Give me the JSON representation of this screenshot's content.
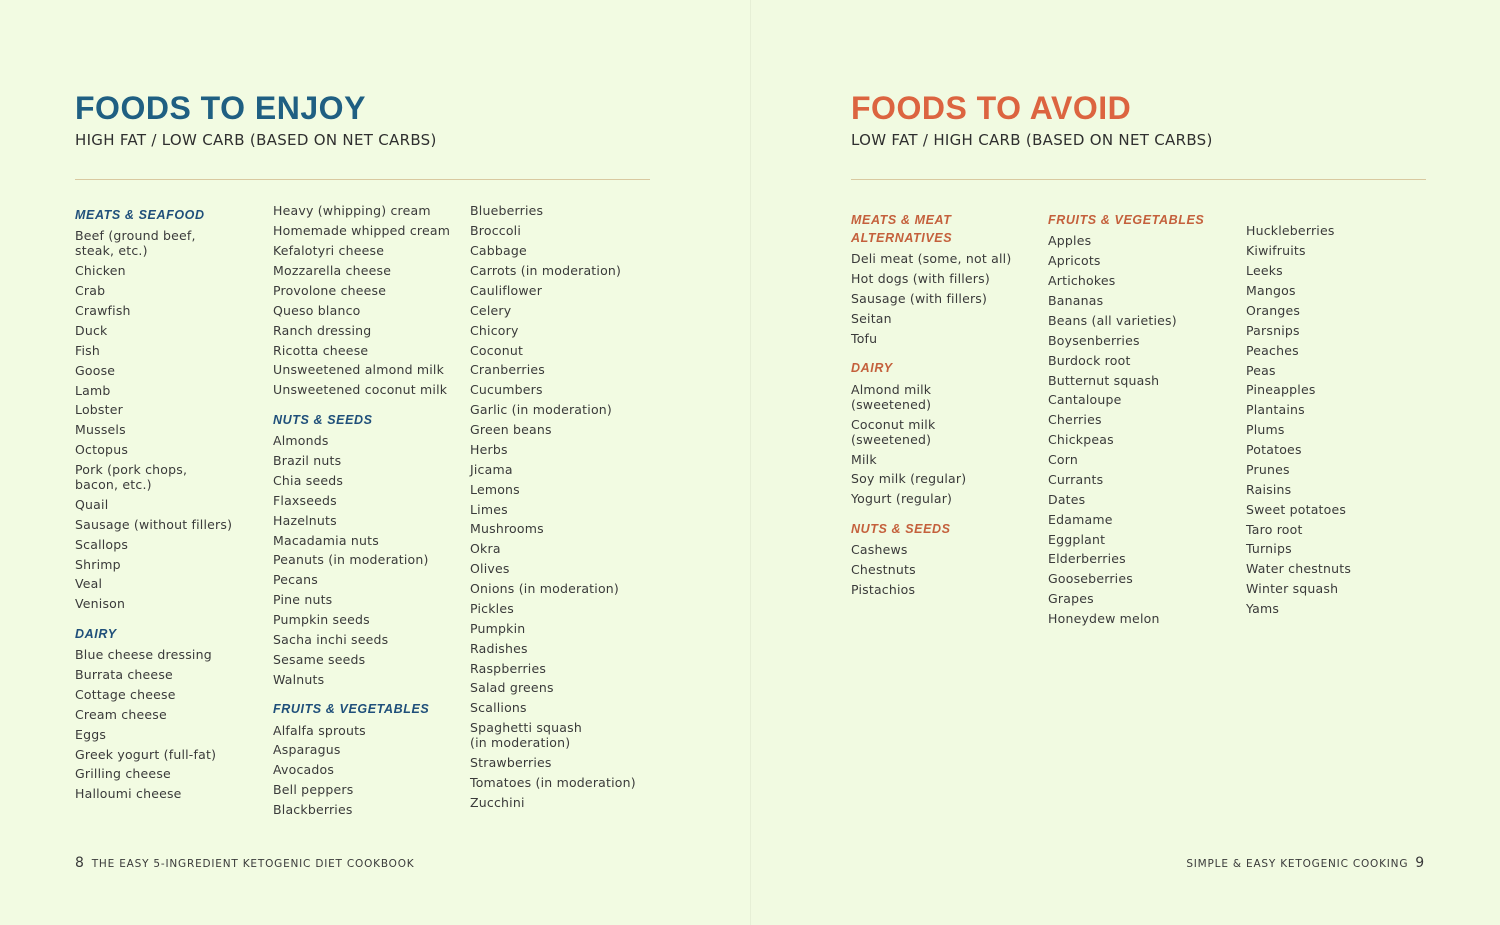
{
  "pages": [
    {
      "title": "FOODS TO ENJOY",
      "subtitle": "HIGH FAT / LOW CARB (BASED ON NET CARBS)",
      "columns": [
        [
          {
            "heading": "MEATS & SEAFOOD",
            "items": [
              "Beef (ground beef,\nsteak, etc.)",
              "Chicken",
              "Crab",
              "Crawfish",
              "Duck",
              "Fish",
              "Goose",
              "Lamb",
              "Lobster",
              "Mussels",
              "Octopus",
              "Pork (pork chops,\nbacon, etc.)",
              "Quail",
              "Sausage (without fillers)",
              "Scallops",
              "Shrimp",
              "Veal",
              "Venison"
            ]
          },
          {
            "heading": "DAIRY",
            "items": [
              "Blue cheese dressing",
              "Burrata cheese",
              "Cottage cheese",
              "Cream cheese",
              "Eggs",
              "Greek yogurt (full-fat)",
              "Grilling cheese",
              "Halloumi cheese"
            ]
          }
        ],
        [
          {
            "items": [
              "Heavy (whipping) cream",
              "Homemade whipped cream",
              "Kefalotyri cheese",
              "Mozzarella cheese",
              "Provolone cheese",
              "Queso blanco",
              "Ranch dressing",
              "Ricotta cheese",
              "Unsweetened almond milk",
              "Unsweetened coconut milk"
            ]
          },
          {
            "heading": "NUTS & SEEDS",
            "items": [
              "Almonds",
              "Brazil nuts",
              "Chia seeds",
              "Flaxseeds",
              "Hazelnuts",
              "Macadamia nuts",
              "Peanuts (in moderation)",
              "Pecans",
              "Pine nuts",
              "Pumpkin seeds",
              "Sacha inchi seeds",
              "Sesame seeds",
              "Walnuts"
            ]
          },
          {
            "heading": "FRUITS & VEGETABLES",
            "items": [
              "Alfalfa sprouts",
              "Asparagus",
              "Avocados",
              "Bell peppers",
              "Blackberries"
            ]
          }
        ],
        [
          {
            "items": [
              "Blueberries",
              "Broccoli",
              "Cabbage",
              "Carrots (in moderation)",
              "Cauliflower",
              "Celery",
              "Chicory",
              "Coconut",
              "Cranberries",
              "Cucumbers",
              "Garlic (in moderation)",
              "Green beans",
              "Herbs",
              "Jicama",
              "Lemons",
              "Limes",
              "Mushrooms",
              "Okra",
              "Olives",
              "Onions (in moderation)",
              "Pickles",
              "Pumpkin",
              "Radishes",
              "Raspberries",
              "Salad greens",
              "Scallions",
              "Spaghetti squash\n(in moderation)",
              "Strawberries",
              "Tomatoes (in moderation)",
              "Zucchini"
            ]
          }
        ]
      ],
      "footer": {
        "page_number": "8",
        "text": "THE EASY 5-INGREDIENT KETOGENIC DIET COOKBOOK"
      }
    },
    {
      "title": "FOODS TO AVOID",
      "subtitle": "LOW FAT / HIGH CARB (BASED ON NET CARBS)",
      "columns": [
        [
          {
            "heading": "MEATS & MEAT\nALTERNATIVES",
            "items": [
              "Deli meat (some, not all)",
              "Hot dogs (with fillers)",
              "Sausage (with fillers)",
              "Seitan",
              "Tofu"
            ]
          },
          {
            "heading": "DAIRY",
            "items": [
              "Almond milk\n(sweetened)",
              "Coconut milk\n(sweetened)",
              "Milk",
              "Soy milk (regular)",
              "Yogurt (regular)"
            ]
          },
          {
            "heading": "NUTS & SEEDS",
            "items": [
              "Cashews",
              "Chestnuts",
              "Pistachios"
            ]
          }
        ],
        [
          {
            "heading": "FRUITS & VEGETABLES",
            "items": [
              "Apples",
              "Apricots",
              "Artichokes",
              "Bananas",
              "Beans (all varieties)",
              "Boysenberries",
              "Burdock root",
              "Butternut squash",
              "Cantaloupe",
              "Cherries",
              "Chickpeas",
              "Corn",
              "Currants",
              "Dates",
              "Edamame",
              "Eggplant",
              "Elderberries",
              "Gooseberries",
              "Grapes",
              "Honeydew melon"
            ]
          }
        ],
        [
          {
            "items": [
              "Huckleberries",
              "Kiwifruits",
              "Leeks",
              "Mangos",
              "Oranges",
              "Parsnips",
              "Peaches",
              "Peas",
              "Pineapples",
              "Plantains",
              "Plums",
              "Potatoes",
              "Prunes",
              "Raisins",
              "Sweet potatoes",
              "Taro root",
              "Turnips",
              "Water chestnuts",
              "Winter squash",
              "Yams"
            ]
          }
        ]
      ],
      "footer": {
        "text": "SIMPLE & EASY KETOGENIC COOKING",
        "page_number": "9"
      }
    }
  ]
}
